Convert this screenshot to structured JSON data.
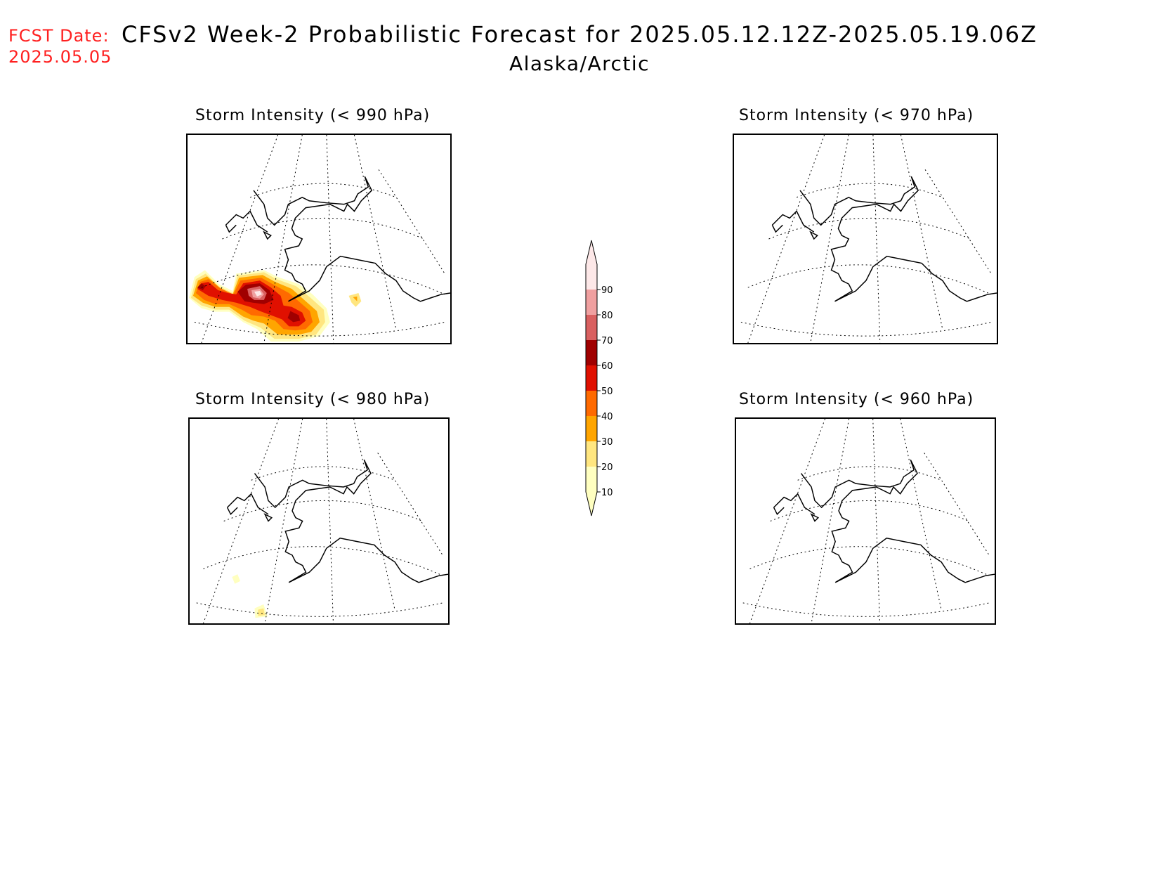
{
  "header": {
    "fcst_label": "FCST Date:",
    "fcst_date": "2025.05.05",
    "title": "CFSv2 Week-2 Probabilistic Forecast for 2025.05.12.12Z-2025.05.19.06Z",
    "subtitle": "Alaska/Arctic"
  },
  "panels": [
    {
      "title": "Storm Intensity (< 990 hPa)",
      "threshold_hpa": 990,
      "shading": "strong"
    },
    {
      "title": "Storm Intensity (< 970 hPa)",
      "threshold_hpa": 970,
      "shading": "none"
    },
    {
      "title": "Storm Intensity (< 980 hPa)",
      "threshold_hpa": 980,
      "shading": "weak"
    },
    {
      "title": "Storm Intensity (< 960 hPa)",
      "threshold_hpa": 960,
      "shading": "none"
    }
  ],
  "colorbar": {
    "levels": [
      "10",
      "20",
      "30",
      "40",
      "50",
      "60",
      "70",
      "80",
      "90"
    ],
    "colors": [
      "#ffffc0",
      "#ffe680",
      "#ffa500",
      "#ff6a00",
      "#e01000",
      "#a00000",
      "#d96060",
      "#f0a0a0",
      "#fde8e8"
    ]
  }
}
